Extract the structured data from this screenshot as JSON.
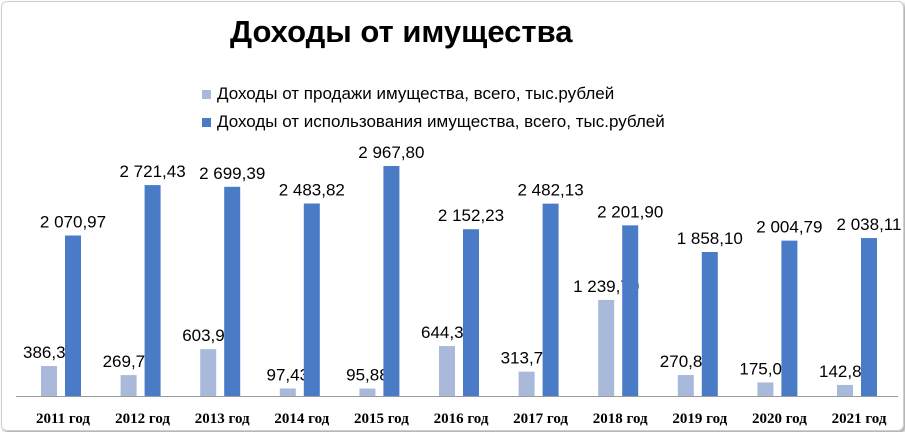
{
  "chart_data": {
    "type": "bar",
    "title": "Доходы от имущества",
    "categories": [
      "2011 год",
      "2012 год",
      "2013 год",
      "2014 год",
      "2015 год",
      "2016 год",
      "2017 год",
      "2018 год",
      "2019 год",
      "2020 год",
      "2021 год"
    ],
    "series": [
      {
        "name": "Доходы от продажи имущества, всего, тыс.рублей",
        "color": "#a9b9da",
        "values": [
          386.37,
          269.78,
          603.93,
          97.43,
          95.88,
          644.32,
          313.7,
          1239.7,
          270.8,
          175.02,
          142.88
        ],
        "labels": [
          "386,37",
          "269,78",
          "603,93",
          "97,43",
          "95,88",
          "644,32",
          "313,70",
          "1 239,70",
          "270,80",
          "175,02",
          "142,88"
        ]
      },
      {
        "name": "Доходы  от использования имущества, всего, тыс.рублей",
        "color": "#4a7bc6",
        "values": [
          2070.97,
          2721.43,
          2699.39,
          2483.82,
          2967.8,
          2152.23,
          2482.13,
          2201.9,
          1858.1,
          2004.79,
          2038.11
        ],
        "labels": [
          "2 070,97",
          "2 721,43",
          "2 699,39",
          "2 483,82",
          "2 967,80",
          "2 152,23",
          "2 482,13",
          "2 201,90",
          "1 858,10",
          "2 004,79",
          "2 038,11"
        ]
      }
    ],
    "legend_position": "top",
    "grid": false
  }
}
